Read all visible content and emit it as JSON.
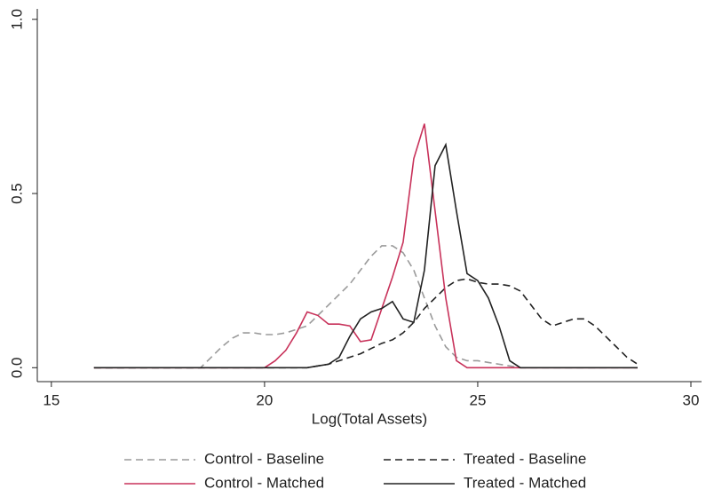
{
  "chart_data": {
    "type": "line",
    "x_label": "Log(Total Assets)",
    "x": [
      16,
      16.25,
      16.5,
      16.75,
      17,
      17.25,
      17.5,
      17.75,
      18,
      18.25,
      18.5,
      18.75,
      19,
      19.25,
      19.5,
      19.75,
      20,
      20.25,
      20.5,
      20.75,
      21,
      21.25,
      21.5,
      21.75,
      22,
      22.25,
      22.5,
      22.75,
      23,
      23.25,
      23.5,
      23.75,
      24,
      24.25,
      24.5,
      24.75,
      25,
      25.25,
      25.5,
      25.75,
      26,
      26.25,
      26.5,
      26.75,
      27,
      27.25,
      27.5,
      27.75,
      28,
      28.25,
      28.5,
      28.75
    ],
    "xlim": [
      14.67,
      30.25
    ],
    "xticks": [
      15,
      20,
      25,
      30
    ],
    "ylim": [
      -0.04,
      1.03
    ],
    "yticks": [
      {
        "value": 0,
        "label": "0.0"
      },
      {
        "value": 0.5,
        "label": "0.5"
      },
      {
        "value": 1,
        "label": "1.0"
      }
    ],
    "grid": false,
    "legend": "bottom",
    "series": [
      {
        "name": "Control - Baseline",
        "color": "#9a9a9a",
        "style": "dashed",
        "values": [
          0,
          0,
          0,
          0,
          0,
          0,
          0,
          0,
          0,
          0,
          0,
          0.03,
          0.06,
          0.085,
          0.1,
          0.1,
          0.095,
          0.095,
          0.1,
          0.11,
          0.12,
          0.15,
          0.18,
          0.21,
          0.24,
          0.28,
          0.32,
          0.35,
          0.35,
          0.33,
          0.28,
          0.2,
          0.12,
          0.06,
          0.03,
          0.02,
          0.02,
          0.015,
          0.01,
          0.005,
          0,
          0,
          0,
          0,
          0,
          0,
          0,
          0,
          0,
          0,
          0,
          0
        ]
      },
      {
        "name": "Treated - Baseline",
        "color": "#222222",
        "style": "dashed",
        "values": [
          0,
          0,
          0,
          0,
          0,
          0,
          0,
          0,
          0,
          0,
          0,
          0,
          0,
          0,
          0,
          0,
          0,
          0,
          0,
          0,
          0,
          0.005,
          0.01,
          0.02,
          0.03,
          0.04,
          0.055,
          0.07,
          0.08,
          0.1,
          0.13,
          0.17,
          0.2,
          0.23,
          0.25,
          0.255,
          0.245,
          0.24,
          0.24,
          0.235,
          0.22,
          0.18,
          0.14,
          0.12,
          0.13,
          0.14,
          0.14,
          0.12,
          0.09,
          0.06,
          0.03,
          0.01
        ]
      },
      {
        "name": "Control - Matched",
        "color": "#c8325a",
        "style": "solid",
        "values": [
          0,
          0,
          0,
          0,
          0,
          0,
          0,
          0,
          0,
          0,
          0,
          0,
          0,
          0,
          0,
          0,
          0,
          0.02,
          0.05,
          0.1,
          0.16,
          0.15,
          0.125,
          0.125,
          0.12,
          0.075,
          0.08,
          0.17,
          0.26,
          0.36,
          0.6,
          0.7,
          0.45,
          0.2,
          0.02,
          0,
          0,
          0,
          0,
          0,
          0,
          0,
          0,
          0,
          0,
          0,
          0,
          0,
          0,
          0,
          0,
          0
        ]
      },
      {
        "name": "Treated - Matched",
        "color": "#222222",
        "style": "solid",
        "values": [
          0,
          0,
          0,
          0,
          0,
          0,
          0,
          0,
          0,
          0,
          0,
          0,
          0,
          0,
          0,
          0,
          0,
          0,
          0,
          0,
          0,
          0.005,
          0.01,
          0.03,
          0.09,
          0.14,
          0.16,
          0.17,
          0.19,
          0.14,
          0.13,
          0.28,
          0.58,
          0.64,
          0.45,
          0.27,
          0.25,
          0.2,
          0.12,
          0.02,
          0,
          0,
          0,
          0,
          0,
          0,
          0,
          0,
          0,
          0,
          0,
          0
        ]
      }
    ]
  }
}
